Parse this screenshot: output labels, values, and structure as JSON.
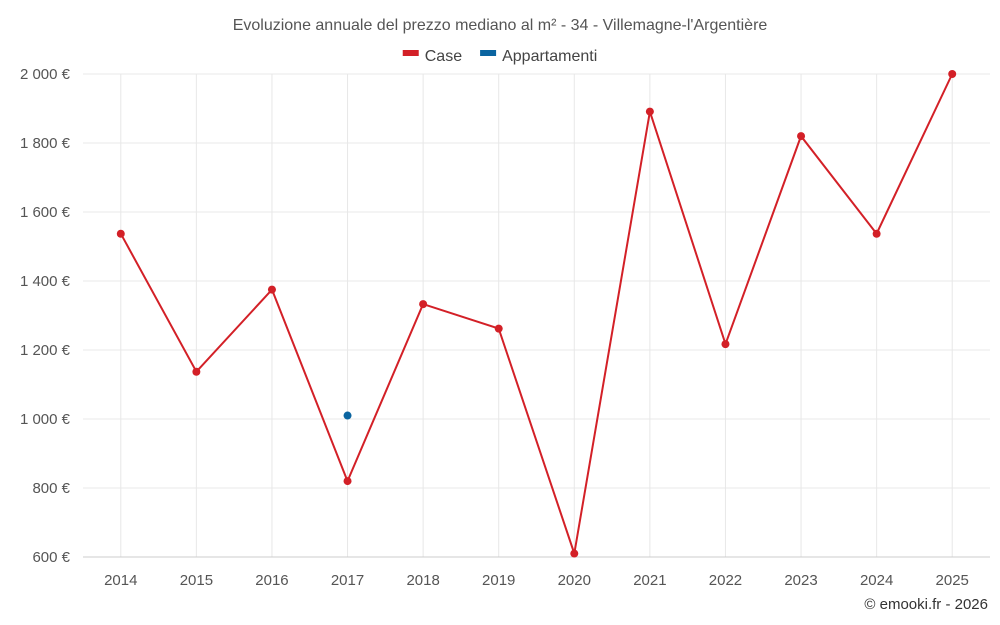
{
  "chart_data": {
    "type": "line",
    "title": "Evoluzione annuale del prezzo mediano al m² - 34 - Villemagne-l'Argentière",
    "xlabel": "",
    "ylabel": "",
    "categories": [
      "2014",
      "2015",
      "2016",
      "2017",
      "2018",
      "2019",
      "2020",
      "2021",
      "2022",
      "2023",
      "2024",
      "2025"
    ],
    "ylim": [
      600,
      2000
    ],
    "y_ticks": [
      600,
      800,
      1000,
      1200,
      1400,
      1600,
      1800,
      2000
    ],
    "y_tick_labels": [
      "600 €",
      "800 €",
      "1 000 €",
      "1 200 €",
      "1 400 €",
      "1 600 €",
      "1 800 €",
      "2 000 €"
    ],
    "grid": true,
    "legend_position": "top-center",
    "series": [
      {
        "name": "Case",
        "color": "#d32027",
        "values": [
          1537,
          1137,
          1375,
          820,
          1333,
          1262,
          610,
          1891,
          1217,
          1820,
          1537,
          2000
        ]
      },
      {
        "name": "Appartamenti",
        "color": "#0a64a0",
        "values": [
          null,
          null,
          null,
          1010,
          null,
          null,
          null,
          null,
          null,
          null,
          null,
          null
        ]
      }
    ]
  },
  "credit": "© emooki.fr - 2026"
}
